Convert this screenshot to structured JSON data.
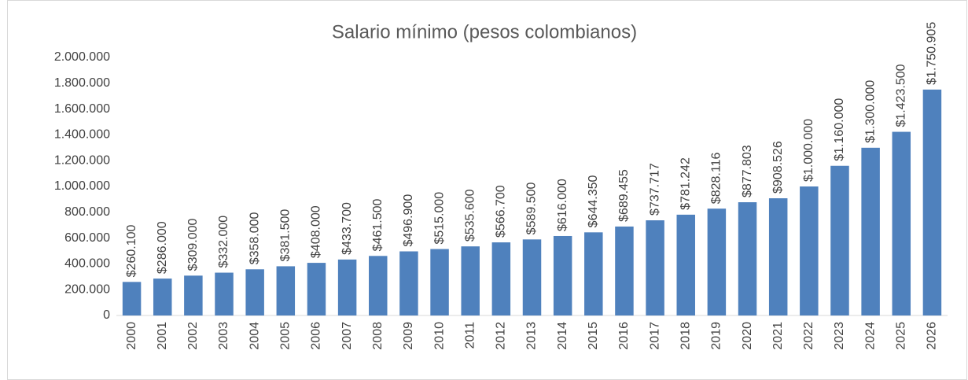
{
  "chart_data": {
    "type": "bar",
    "title": "Salario mínimo (pesos colombianos)",
    "categories": [
      "2000",
      "2001",
      "2002",
      "2003",
      "2004",
      "2005",
      "2006",
      "2007",
      "2008",
      "2009",
      "2010",
      "2011",
      "2012",
      "2013",
      "2014",
      "2015",
      "2016",
      "2017",
      "2018",
      "2019",
      "2020",
      "2021",
      "2022",
      "2023",
      "2024",
      "2025",
      "2026"
    ],
    "values": [
      260100,
      286000,
      309000,
      332000,
      358000,
      381500,
      408000,
      433700,
      461500,
      496900,
      515000,
      535600,
      566700,
      589500,
      616000,
      644350,
      689455,
      737717,
      781242,
      828116,
      877803,
      908526,
      1000000,
      1160000,
      1300000,
      1423500,
      1750905
    ],
    "value_labels": [
      "$260.100",
      "$286.000",
      "$309.000",
      "$332.000",
      "$358.000",
      "$381.500",
      "$408.000",
      "$433.700",
      "$461.500",
      "$496.900",
      "$515.000",
      "$535.600",
      "$566.700",
      "$589.500",
      "$616.000",
      "$644.350",
      "$689.455",
      "$737.717",
      "$781.242",
      "$828.116",
      "$877.803",
      "$908.526",
      "$1.000.000",
      "$1.160.000",
      "$1.300.000",
      "$1.423.500",
      "$1.750.905"
    ],
    "color": "#4f81bd",
    "ylim": [
      0,
      2000000
    ],
    "yticks": [
      0,
      {
        "value": 200000,
        "label": "200.000"
      },
      {
        "value": 400000,
        "label": "400.000"
      },
      {
        "value": 600000,
        "label": "600.000"
      },
      {
        "value": 800000,
        "label": "800.000"
      },
      {
        "value": 1000000,
        "label": "1.000.000"
      },
      {
        "value": 1200000,
        "label": "1.200.000"
      },
      {
        "value": 1400000,
        "label": "1.400.000"
      },
      {
        "value": 1600000,
        "label": "1.600.000"
      },
      {
        "value": 1800000,
        "label": "1.800.000"
      },
      {
        "value": 2000000,
        "label": "2.000.000"
      }
    ],
    "grid": false
  }
}
